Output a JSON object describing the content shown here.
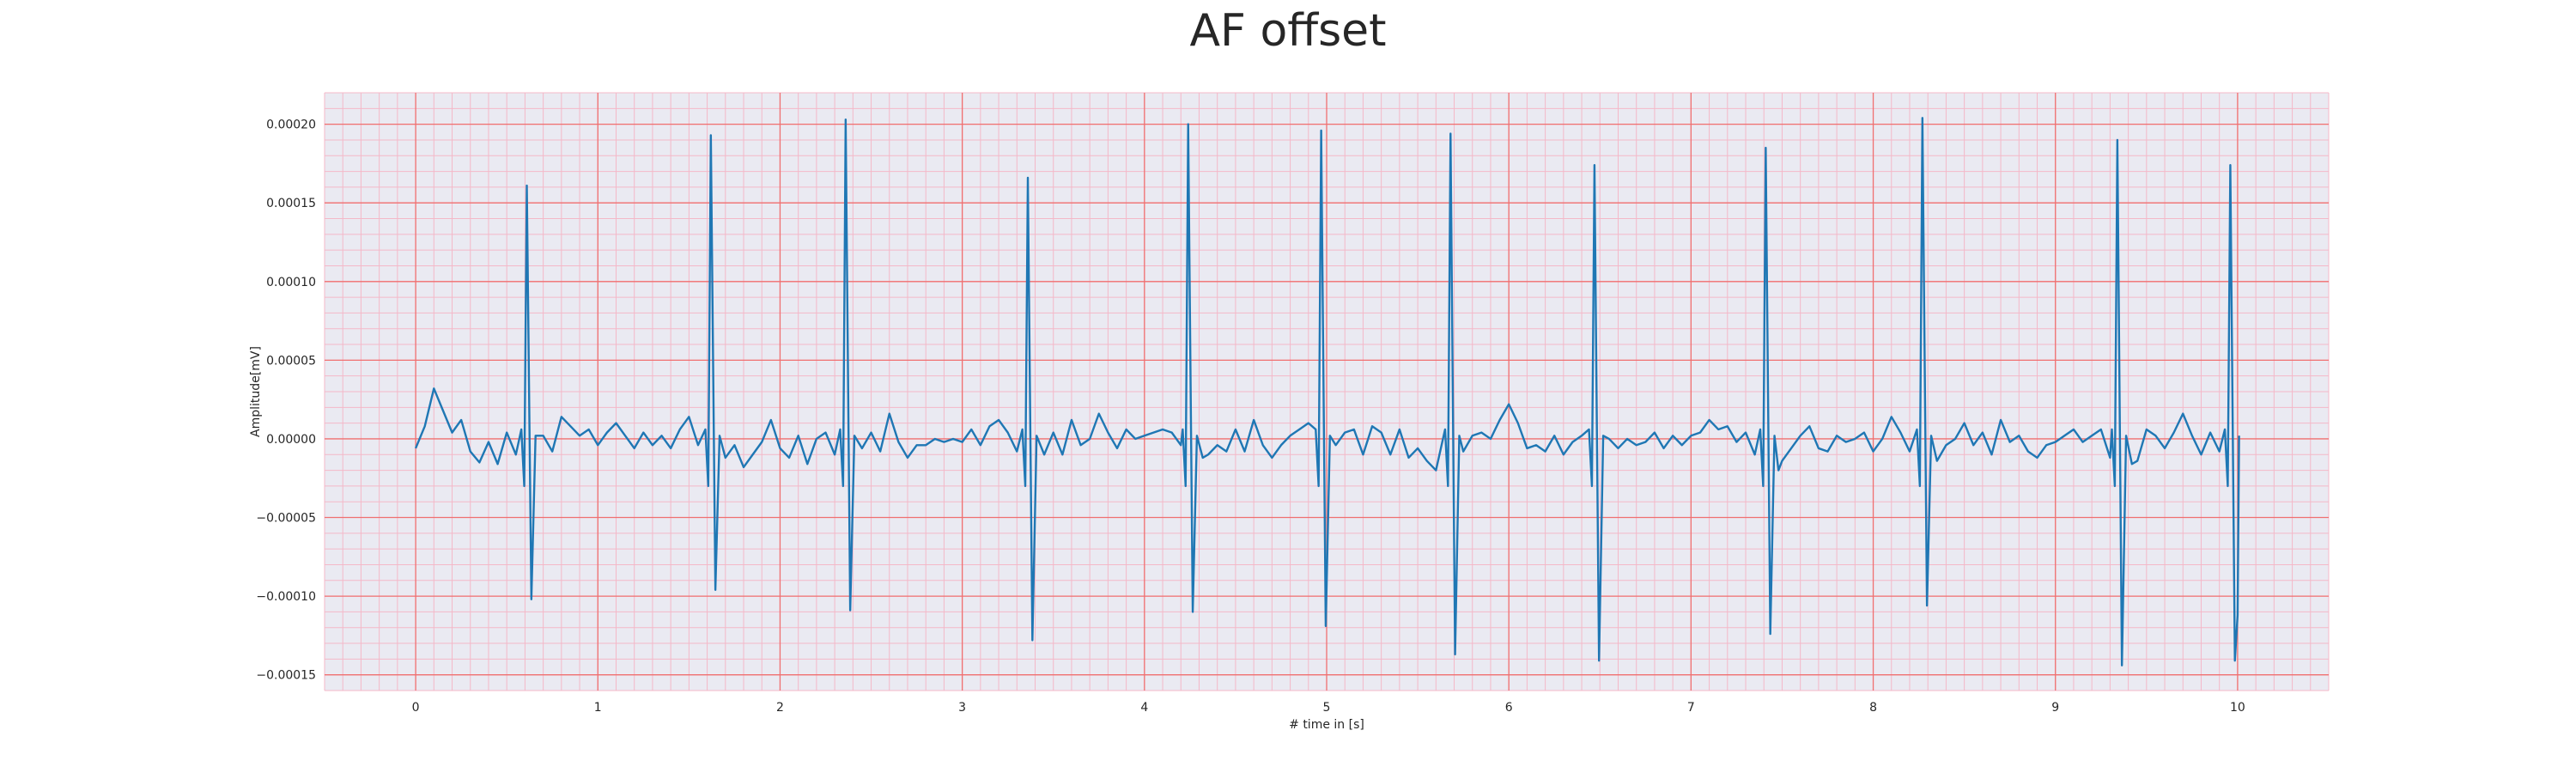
{
  "chart_data": {
    "type": "line",
    "title": "AF offset",
    "xlabel": "# time in [s]",
    "ylabel": "Amplitude[mV]",
    "xlim": [
      -0.5,
      10.5
    ],
    "ylim": [
      -0.00016,
      0.00022
    ],
    "x_ticks": [
      0,
      1,
      2,
      3,
      4,
      5,
      6,
      7,
      8,
      9,
      10
    ],
    "x_tick_labels": [
      "0",
      "1",
      "2",
      "3",
      "4",
      "5",
      "6",
      "7",
      "8",
      "9",
      "10"
    ],
    "y_ticks": [
      -0.00015,
      -0.0001,
      -5e-05,
      0,
      5e-05,
      0.0001,
      0.00015,
      0.0002
    ],
    "y_tick_labels": [
      "−0.00015",
      "−0.00010",
      "−0.00005",
      "0.00000",
      "0.00005",
      "0.00010",
      "0.00015",
      "0.00020"
    ],
    "grid": true,
    "minor_grid": true,
    "colors": {
      "line": "#1f77b4",
      "plot_background": "#eaeaf2",
      "major_grid": "#f07070",
      "minor_grid": "#f4b8c8"
    },
    "series": [
      {
        "name": "",
        "beats": [
          {
            "t": 0.61,
            "r": 0.000161,
            "s": -0.000102
          },
          {
            "t": 1.62,
            "r": 0.000193,
            "s": -9.6e-05
          },
          {
            "t": 2.36,
            "r": 0.000203,
            "s": -0.000109
          },
          {
            "t": 3.36,
            "r": 0.000166,
            "s": -0.000128
          },
          {
            "t": 4.24,
            "r": 0.0002,
            "s": -0.00011
          },
          {
            "t": 4.97,
            "r": 0.000196,
            "s": -0.000119
          },
          {
            "t": 5.68,
            "r": 0.000194,
            "s": -0.000137
          },
          {
            "t": 6.47,
            "r": 0.000174,
            "s": -0.000141
          },
          {
            "t": 7.41,
            "r": 0.000185,
            "s": -0.000124
          },
          {
            "t": 8.27,
            "r": 0.000204,
            "s": -0.000106
          },
          {
            "t": 9.34,
            "r": 0.00019,
            "s": -0.000144
          },
          {
            "t": 9.96,
            "r": 0.000174,
            "s": -0.000141
          }
        ],
        "baseline_points": [
          [
            0.0,
            -6e-06
          ],
          [
            0.05,
            8e-06
          ],
          [
            0.1,
            3.2e-05
          ],
          [
            0.15,
            1.8e-05
          ],
          [
            0.2,
            4e-06
          ],
          [
            0.25,
            1.2e-05
          ],
          [
            0.3,
            -8e-06
          ],
          [
            0.35,
            -1.5e-05
          ],
          [
            0.4,
            -2e-06
          ],
          [
            0.45,
            -1.6e-05
          ],
          [
            0.5,
            4e-06
          ],
          [
            0.55,
            -1e-05
          ],
          [
            0.7,
            2e-06
          ],
          [
            0.75,
            -8e-06
          ],
          [
            0.8,
            1.4e-05
          ],
          [
            0.85,
            8e-06
          ],
          [
            0.9,
            2e-06
          ],
          [
            0.95,
            6e-06
          ],
          [
            1.0,
            -4e-06
          ],
          [
            1.05,
            4e-06
          ],
          [
            1.1,
            1e-05
          ],
          [
            1.15,
            2e-06
          ],
          [
            1.2,
            -6e-06
          ],
          [
            1.25,
            4e-06
          ],
          [
            1.3,
            -4e-06
          ],
          [
            1.35,
            2e-06
          ],
          [
            1.4,
            -6e-06
          ],
          [
            1.45,
            6e-06
          ],
          [
            1.5,
            1.4e-05
          ],
          [
            1.55,
            -4e-06
          ],
          [
            1.7,
            -1.2e-05
          ],
          [
            1.75,
            -4e-06
          ],
          [
            1.8,
            -1.8e-05
          ],
          [
            1.85,
            -1e-05
          ],
          [
            1.9,
            -2e-06
          ],
          [
            1.95,
            1.2e-05
          ],
          [
            2.0,
            -6e-06
          ],
          [
            2.05,
            -1.2e-05
          ],
          [
            2.1,
            2e-06
          ],
          [
            2.15,
            -1.6e-05
          ],
          [
            2.2,
            0.0
          ],
          [
            2.25,
            4e-06
          ],
          [
            2.3,
            -1e-05
          ],
          [
            2.45,
            -6e-06
          ],
          [
            2.5,
            4e-06
          ],
          [
            2.55,
            -8e-06
          ],
          [
            2.6,
            1.6e-05
          ],
          [
            2.65,
            -2e-06
          ],
          [
            2.7,
            -1.2e-05
          ],
          [
            2.75,
            -4e-06
          ],
          [
            2.8,
            -4e-06
          ],
          [
            2.85,
            0.0
          ],
          [
            2.9,
            -2e-06
          ],
          [
            2.95,
            0.0
          ],
          [
            3.0,
            -2e-06
          ],
          [
            3.05,
            6e-06
          ],
          [
            3.1,
            -4e-06
          ],
          [
            3.15,
            8e-06
          ],
          [
            3.2,
            1.2e-05
          ],
          [
            3.25,
            4e-06
          ],
          [
            3.3,
            -8e-06
          ],
          [
            3.45,
            -1e-05
          ],
          [
            3.5,
            4e-06
          ],
          [
            3.55,
            -1e-05
          ],
          [
            3.6,
            1.2e-05
          ],
          [
            3.65,
            -4e-06
          ],
          [
            3.7,
            0.0
          ],
          [
            3.75,
            1.6e-05
          ],
          [
            3.8,
            4e-06
          ],
          [
            3.85,
            -6e-06
          ],
          [
            3.9,
            6e-06
          ],
          [
            3.95,
            0.0
          ],
          [
            4.0,
            2e-06
          ],
          [
            4.05,
            4e-06
          ],
          [
            4.1,
            6e-06
          ],
          [
            4.15,
            4e-06
          ],
          [
            4.2,
            -4e-06
          ],
          [
            4.32,
            -1.2e-05
          ],
          [
            4.35,
            -1e-05
          ],
          [
            4.4,
            -4e-06
          ],
          [
            4.45,
            -8e-06
          ],
          [
            4.5,
            6e-06
          ],
          [
            4.55,
            -8e-06
          ],
          [
            4.6,
            1.2e-05
          ],
          [
            4.65,
            -4e-06
          ],
          [
            4.7,
            -1.2e-05
          ],
          [
            4.75,
            -4e-06
          ],
          [
            4.8,
            2e-06
          ],
          [
            4.85,
            6e-06
          ],
          [
            4.9,
            1e-05
          ],
          [
            5.05,
            -4e-06
          ],
          [
            5.1,
            4e-06
          ],
          [
            5.15,
            6e-06
          ],
          [
            5.2,
            -1e-05
          ],
          [
            5.25,
            8e-06
          ],
          [
            5.3,
            4e-06
          ],
          [
            5.35,
            -1e-05
          ],
          [
            5.4,
            6e-06
          ],
          [
            5.45,
            -1.2e-05
          ],
          [
            5.5,
            -6e-06
          ],
          [
            5.55,
            -1.4e-05
          ],
          [
            5.6,
            -2e-05
          ],
          [
            5.75,
            -8e-06
          ],
          [
            5.8,
            2e-06
          ],
          [
            5.85,
            4e-06
          ],
          [
            5.9,
            0.0
          ],
          [
            5.95,
            1.2e-05
          ],
          [
            6.0,
            2.2e-05
          ],
          [
            6.05,
            1e-05
          ],
          [
            6.1,
            -6e-06
          ],
          [
            6.15,
            -4e-06
          ],
          [
            6.2,
            -8e-06
          ],
          [
            6.25,
            2e-06
          ],
          [
            6.3,
            -1e-05
          ],
          [
            6.35,
            -2e-06
          ],
          [
            6.4,
            2e-06
          ],
          [
            6.55,
            0.0
          ],
          [
            6.6,
            -6e-06
          ],
          [
            6.65,
            0.0
          ],
          [
            6.7,
            -4e-06
          ],
          [
            6.75,
            -2e-06
          ],
          [
            6.8,
            4e-06
          ],
          [
            6.85,
            -6e-06
          ],
          [
            6.9,
            2e-06
          ],
          [
            6.95,
            -4e-06
          ],
          [
            7.0,
            2e-06
          ],
          [
            7.05,
            4e-06
          ],
          [
            7.1,
            1.2e-05
          ],
          [
            7.15,
            6e-06
          ],
          [
            7.2,
            8e-06
          ],
          [
            7.25,
            -2e-06
          ],
          [
            7.3,
            4e-06
          ],
          [
            7.35,
            -1e-05
          ],
          [
            7.48,
            -2e-05
          ],
          [
            7.5,
            -1.4e-05
          ],
          [
            7.55,
            -6e-06
          ],
          [
            7.6,
            2e-06
          ],
          [
            7.65,
            8e-06
          ],
          [
            7.7,
            -6e-06
          ],
          [
            7.75,
            -8e-06
          ],
          [
            7.8,
            2e-06
          ],
          [
            7.85,
            -2e-06
          ],
          [
            7.9,
            0.0
          ],
          [
            7.95,
            4e-06
          ],
          [
            8.0,
            -8e-06
          ],
          [
            8.05,
            0.0
          ],
          [
            8.1,
            1.4e-05
          ],
          [
            8.15,
            4e-06
          ],
          [
            8.2,
            -8e-06
          ],
          [
            8.35,
            -1.4e-05
          ],
          [
            8.4,
            -4e-06
          ],
          [
            8.45,
            0.0
          ],
          [
            8.5,
            1e-05
          ],
          [
            8.55,
            -4e-06
          ],
          [
            8.6,
            4e-06
          ],
          [
            8.65,
            -1e-05
          ],
          [
            8.7,
            1.2e-05
          ],
          [
            8.75,
            -2e-06
          ],
          [
            8.8,
            2e-06
          ],
          [
            8.85,
            -8e-06
          ],
          [
            8.9,
            -1.2e-05
          ],
          [
            8.95,
            -4e-06
          ],
          [
            9.0,
            -2e-06
          ],
          [
            9.05,
            2e-06
          ],
          [
            9.1,
            6e-06
          ],
          [
            9.15,
            -2e-06
          ],
          [
            9.2,
            2e-06
          ],
          [
            9.25,
            6e-06
          ],
          [
            9.3,
            -1.2e-05
          ],
          [
            9.42,
            -1.6e-05
          ],
          [
            9.45,
            -1.4e-05
          ],
          [
            9.5,
            6e-06
          ],
          [
            9.55,
            2e-06
          ],
          [
            9.6,
            -6e-06
          ],
          [
            9.65,
            4e-06
          ],
          [
            9.7,
            1.6e-05
          ],
          [
            9.75,
            2e-06
          ],
          [
            9.8,
            -1e-05
          ],
          [
            9.85,
            4e-06
          ],
          [
            9.9,
            -8e-06
          ],
          [
            10.0,
            -0.000112
          ]
        ]
      }
    ]
  }
}
